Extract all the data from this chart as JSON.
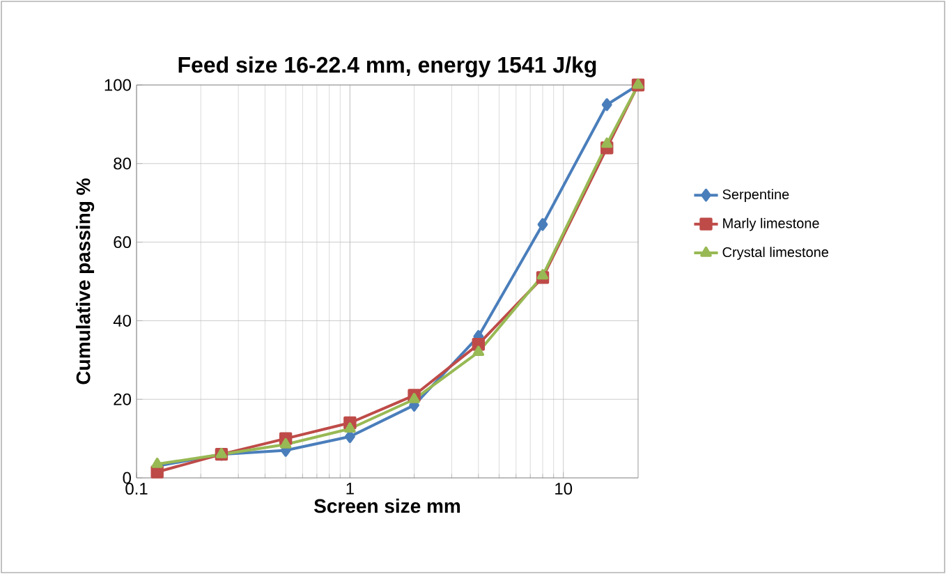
{
  "chart_data": {
    "type": "line",
    "title": "Feed size 16-22.4 mm, energy 1541 J/kg",
    "xlabel": "Screen size mm",
    "ylabel": "Cumulative passing  %",
    "log": "x",
    "grid": true,
    "legend": "right",
    "xlim": [
      0.1,
      22.4
    ],
    "xticks": [
      0.1,
      1,
      10
    ],
    "ylim": [
      0,
      100
    ],
    "yticks": [
      0,
      20,
      40,
      60,
      80,
      100
    ],
    "x": [
      0.125,
      0.25,
      0.5,
      1,
      2,
      4,
      8,
      16,
      22.4
    ],
    "series": [
      {
        "name": "Serpentine",
        "color": "#4a7ebb",
        "marker": "diamond",
        "values": [
          3,
          6,
          7,
          10.5,
          18.5,
          36,
          64.5,
          95,
          100
        ]
      },
      {
        "name": "Marly limestone",
        "color": "#be4b48",
        "marker": "square",
        "values": [
          1.5,
          6,
          10,
          14,
          21,
          34,
          51,
          84,
          100
        ]
      },
      {
        "name": "Crystal limestone",
        "color": "#98b954",
        "marker": "triangle",
        "values": [
          3.5,
          6,
          8.5,
          12.5,
          20,
          32,
          51.5,
          85,
          100
        ]
      }
    ]
  }
}
